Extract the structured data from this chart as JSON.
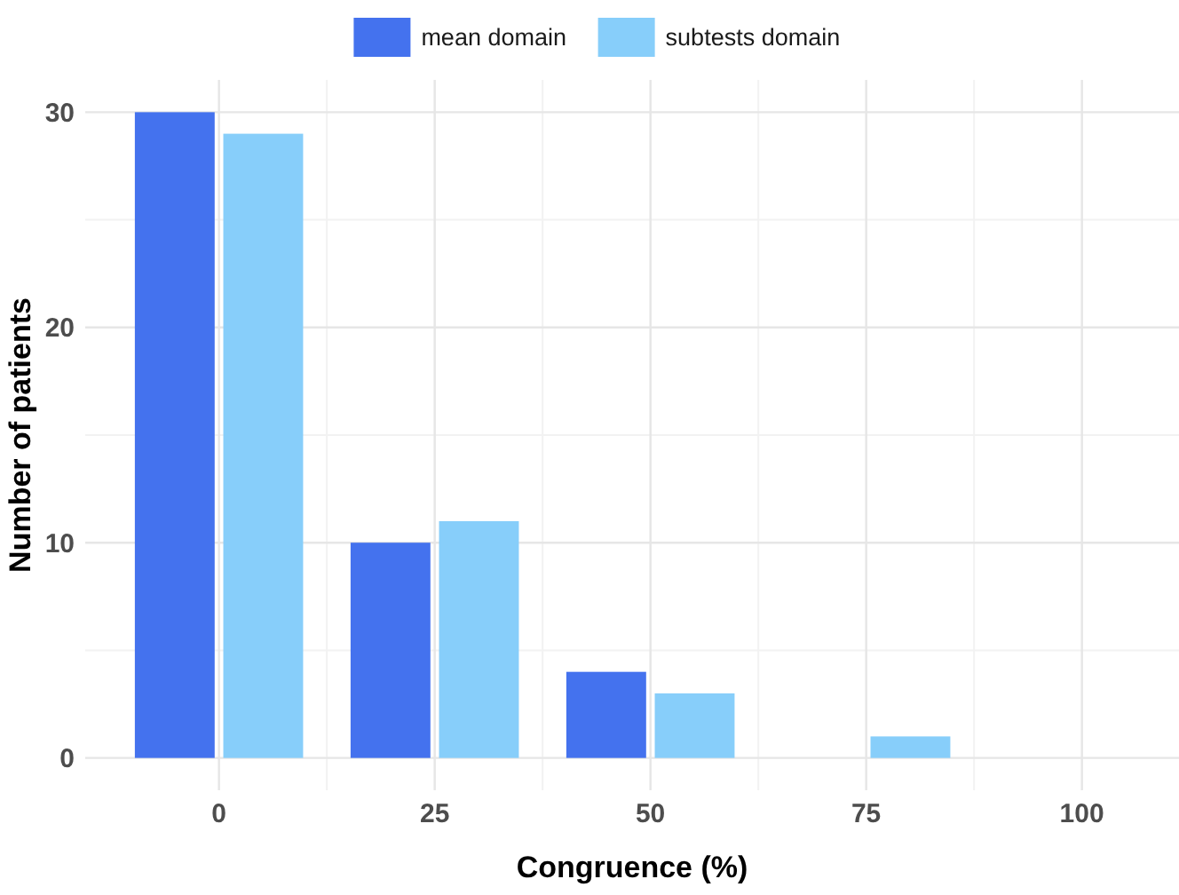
{
  "chart_data": {
    "type": "bar",
    "xlabel": "Congruence (%)",
    "ylabel": "Number of patients",
    "categories": [
      "0",
      "25",
      "50",
      "75",
      "100"
    ],
    "series": [
      {
        "name": "mean domain",
        "color": "#4472ee",
        "values": [
          30,
          10,
          4,
          0,
          0
        ]
      },
      {
        "name": "subtests domain",
        "color": "#87cefa",
        "values": [
          29,
          11,
          3,
          1,
          0
        ]
      }
    ],
    "ylim": [
      -1.5,
      31.5
    ],
    "yticks": [
      0,
      10,
      20,
      30
    ],
    "grid": true,
    "legend": "top"
  }
}
